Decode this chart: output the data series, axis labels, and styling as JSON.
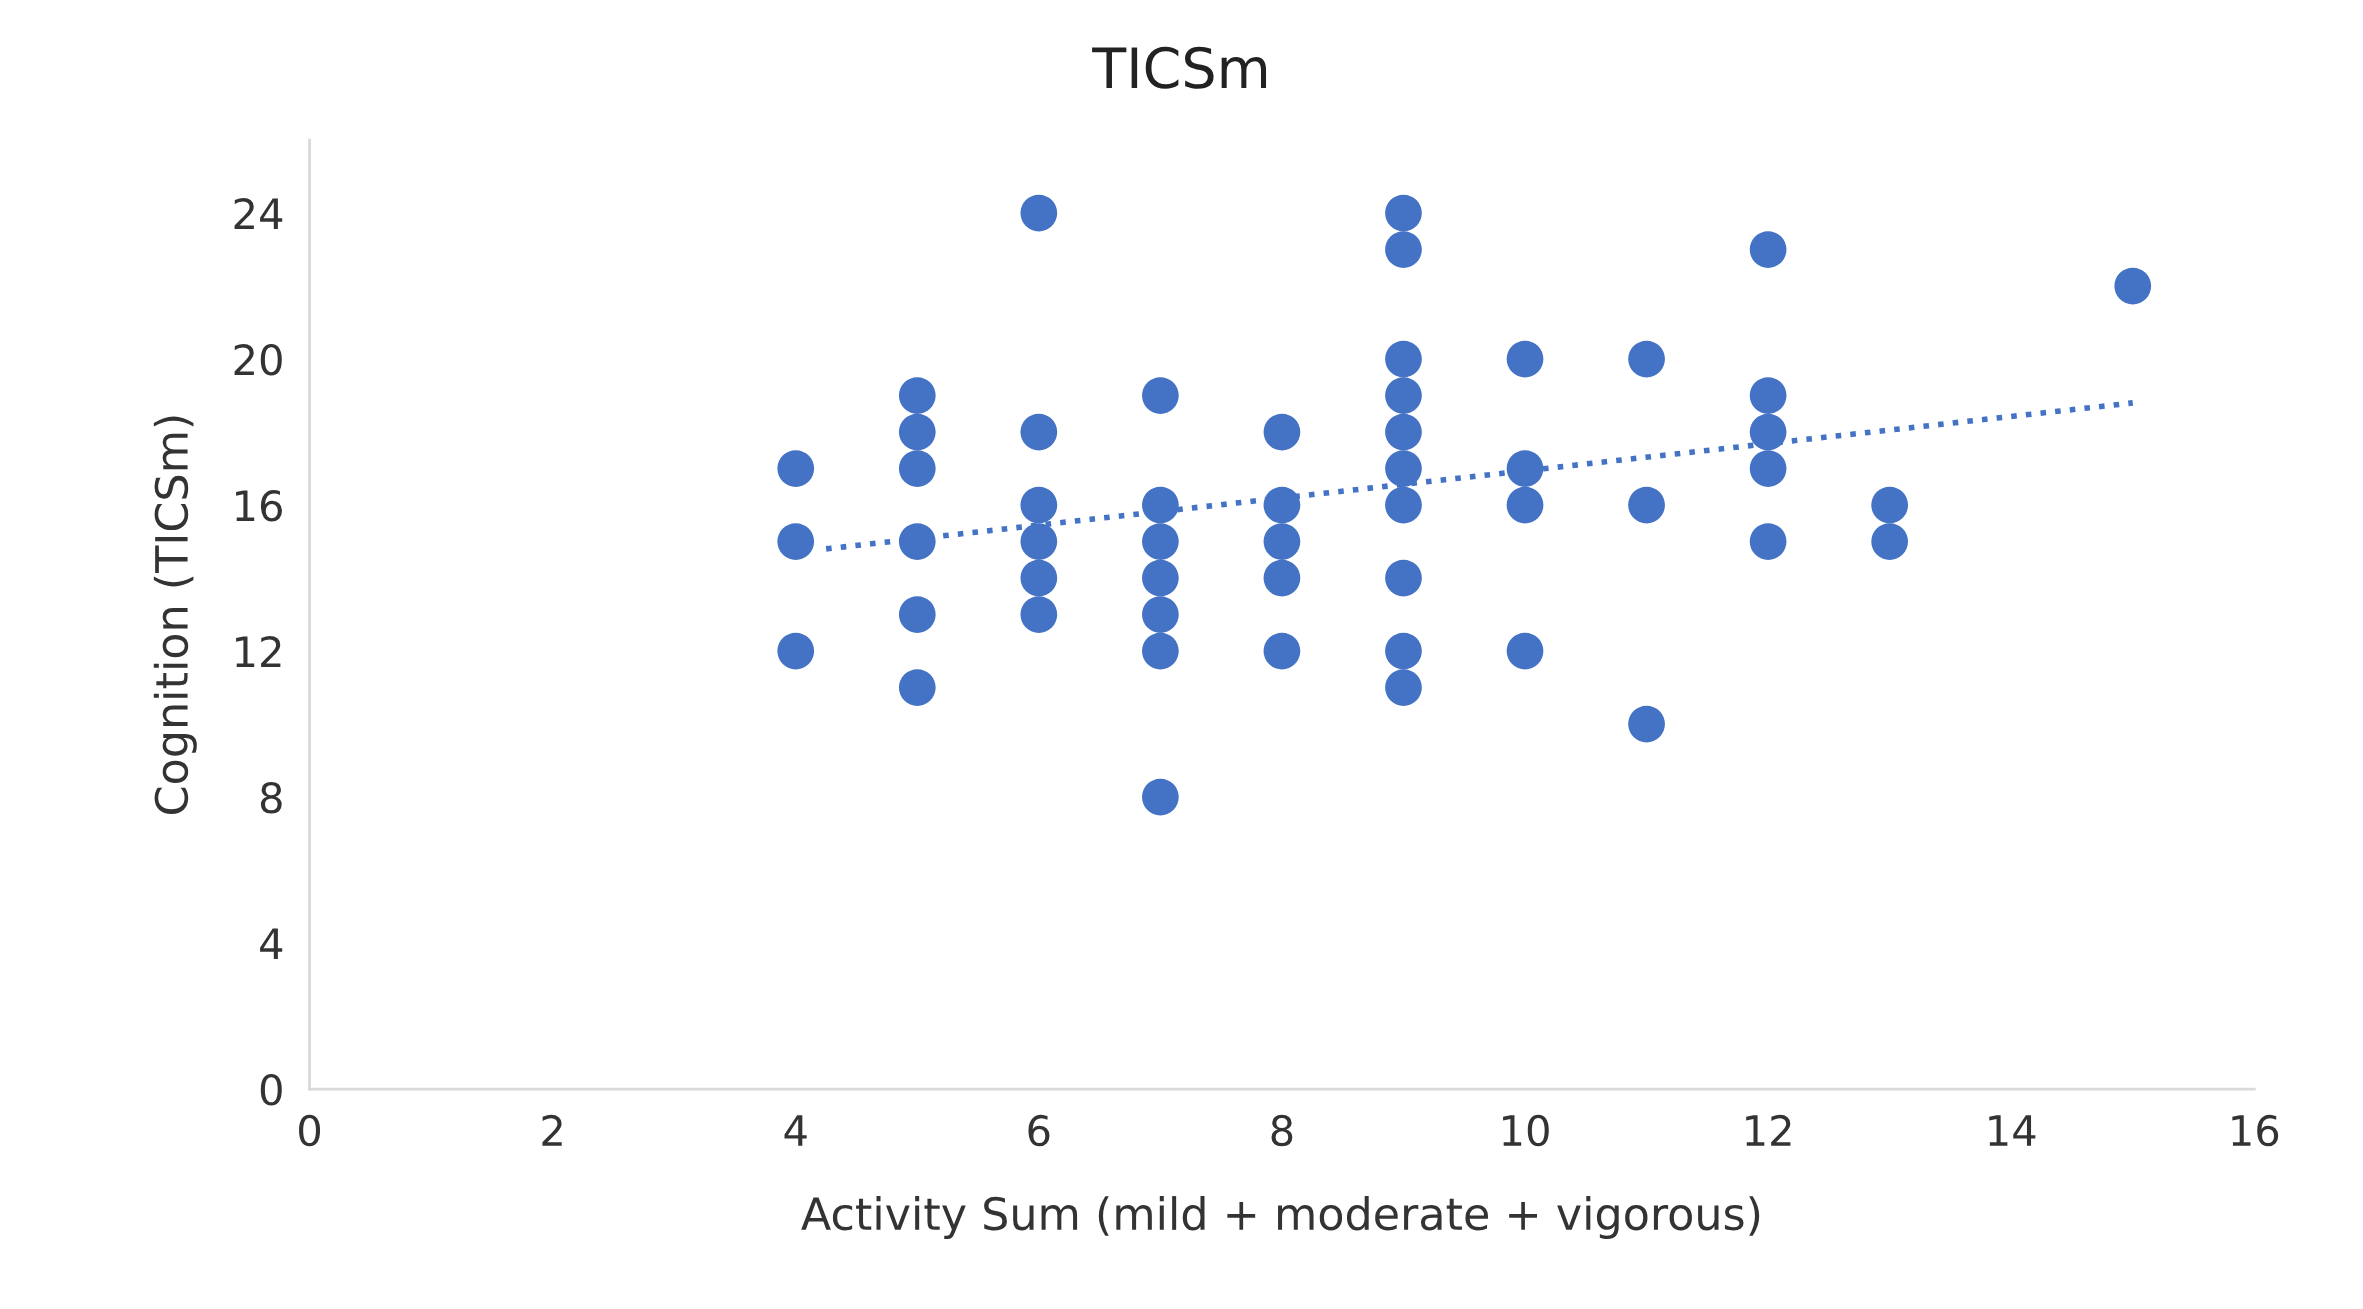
{
  "chart_data": {
    "type": "scatter",
    "title": "TICSm",
    "xlabel": "Activity Sum (mild + moderate + vigorous)",
    "ylabel": "Cognition (TICSm)",
    "series": [
      {
        "color": "#4472c4",
        "marker": "circle",
        "x": [
          4,
          4,
          4,
          5,
          5,
          5,
          5,
          5,
          5,
          6,
          6,
          6,
          6,
          6,
          6,
          7,
          7,
          7,
          7,
          7,
          7,
          7,
          8,
          8,
          8,
          8,
          8,
          9,
          9,
          9,
          9,
          9,
          9,
          9,
          9,
          9,
          9,
          10,
          10,
          10,
          10,
          11,
          11,
          11,
          12,
          12,
          12,
          12,
          12,
          13,
          13,
          15
        ],
        "values": [
          17,
          15,
          12,
          19,
          18,
          17,
          15,
          13,
          11,
          24,
          18,
          16,
          15,
          14,
          13,
          19,
          16,
          15,
          14,
          13,
          12,
          8,
          18,
          16,
          15,
          14,
          12,
          24,
          23,
          20,
          19,
          18,
          17,
          16,
          14,
          12,
          11,
          20,
          17,
          16,
          12,
          20,
          16,
          10,
          23,
          19,
          18,
          17,
          15,
          16,
          15,
          22
        ]
      },
      {
        "type": "line",
        "color": "#4472c4",
        "line_style": "dotted",
        "x": [
          4.25,
          15
        ],
        "values": [
          14.8,
          18.8
        ]
      }
    ],
    "xlim": [
      0,
      16
    ],
    "xticks": [
      0,
      2,
      4,
      6,
      8,
      10,
      12,
      14,
      16
    ],
    "ylim": [
      0,
      26
    ],
    "yticks": [
      0,
      4,
      8,
      12,
      16,
      20,
      24
    ],
    "grid": false,
    "legend": false
  }
}
